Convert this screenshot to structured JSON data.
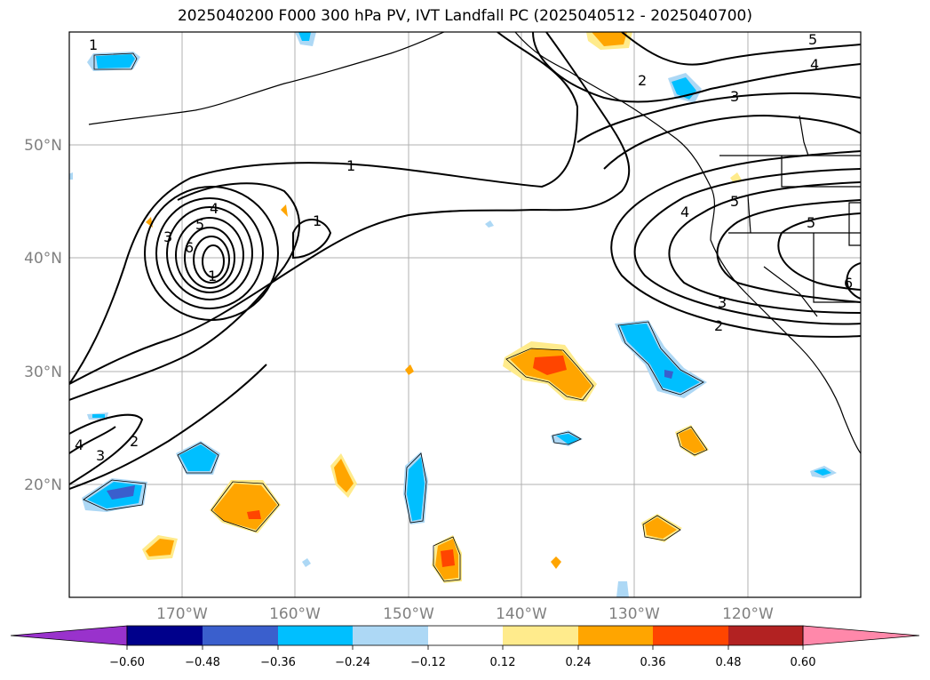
{
  "title": "2025040200 F000 300 hPa PV, IVT Landfall PC (2025040512 - 2025040700)",
  "map": {
    "lat_labels": [
      "50°N",
      "40°N",
      "30°N",
      "20°N"
    ],
    "lon_labels": [
      "170°W",
      "160°W",
      "150°W",
      "140°W",
      "130°W",
      "120°W"
    ],
    "contour_labels": [
      "1",
      "1",
      "1",
      "2",
      "2",
      "3",
      "3",
      "3",
      "4",
      "4",
      "4",
      "5",
      "5",
      "5",
      "6",
      "6",
      "1",
      "2",
      "3",
      "4",
      "5"
    ]
  },
  "colorbar": {
    "colors": [
      "#9932cc",
      "#00008b",
      "#3a5fcd",
      "#00bfff",
      "#add8f5",
      "#ffffff",
      "#ffeb8c",
      "#ffa500",
      "#ff4500",
      "#b22222",
      "#ff88aa"
    ],
    "tick_labels": [
      "−0.60",
      "−0.48",
      "−0.36",
      "−0.24",
      "−0.12",
      "0.12",
      "0.24",
      "0.36",
      "0.48",
      "0.60"
    ]
  }
}
